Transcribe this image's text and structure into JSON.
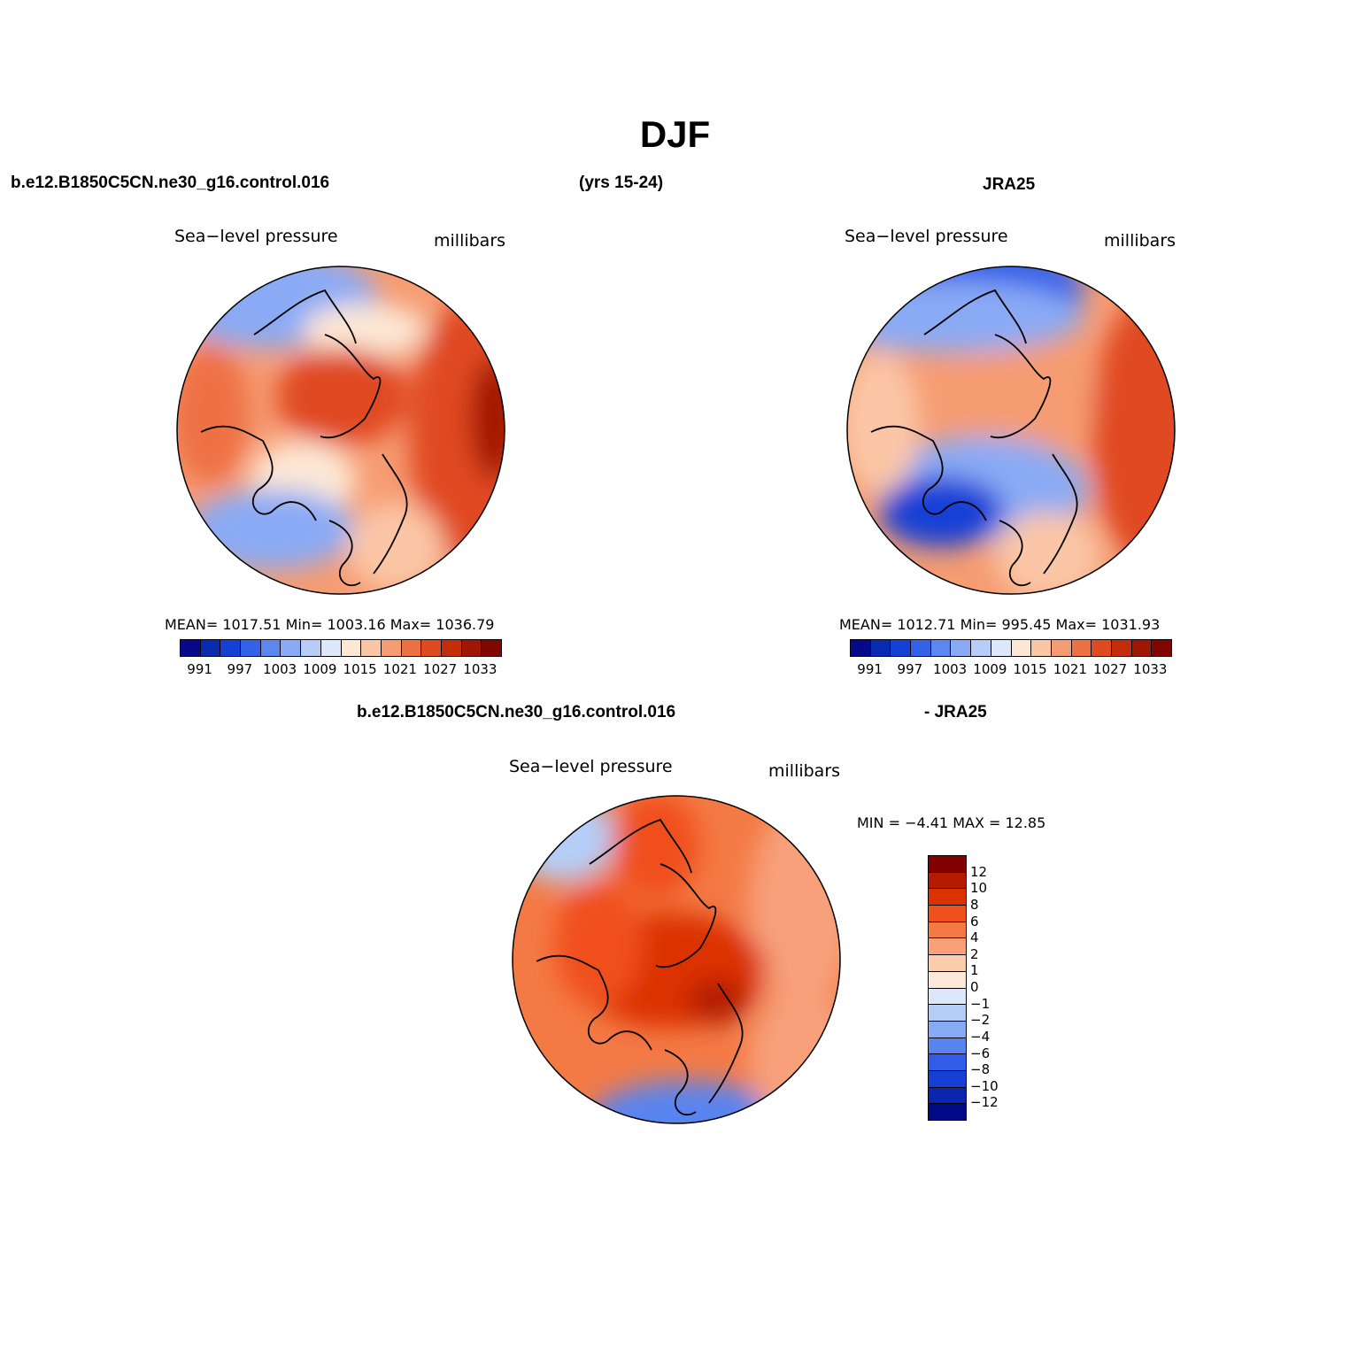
{
  "title": "DJF",
  "top_left_case": "b.e12.B1850C5CN.ne30_g16.control.016",
  "top_years": "(yrs 15-24)",
  "top_right_case": "JRA25",
  "bottom_case": "b.e12.B1850C5CN.ne30_g16.control.016",
  "bottom_ref": "- JRA25",
  "panels": {
    "model": {
      "plot_title": "Sea−level pressure",
      "units": "millibars",
      "stats": "MEAN=  1017.51    Min=  1003.16    Max=  1036.79"
    },
    "obs": {
      "plot_title": "Sea−level pressure",
      "units": "millibars",
      "stats": "MEAN=  1012.71    Min=  995.45    Max=  1031.93"
    },
    "diff": {
      "plot_title": "Sea−level pressure",
      "units": "millibars",
      "stats": "MIN =   −4.41  MAX =   12.85"
    }
  },
  "abs_colorbar": {
    "colors": [
      "#08088a",
      "#0a2ab0",
      "#1440d6",
      "#3361e8",
      "#5c87f0",
      "#8aaaf5",
      "#b7cdf8",
      "#dde9fb",
      "#fde8d6",
      "#fbc6a6",
      "#f69c72",
      "#ee7144",
      "#e04a20",
      "#c42c0c",
      "#a11705",
      "#820600"
    ],
    "tick_labels": [
      "991",
      "997",
      "1003",
      "1009",
      "1015",
      "1021",
      "1027",
      "1033"
    ]
  },
  "diff_colorbar": {
    "colors": [
      "#830000",
      "#b21b00",
      "#db3300",
      "#f0501c",
      "#f47a45",
      "#f7a07a",
      "#fcccae",
      "#fde9da",
      "#dbe8fb",
      "#b5cef8",
      "#87aaf5",
      "#5984f0",
      "#2f5de8",
      "#173fd6",
      "#0a25b0",
      "#020a87"
    ],
    "tick_labels": [
      "12",
      "10",
      "8",
      "6",
      "4",
      "2",
      "1",
      "0",
      "−1",
      "−2",
      "−4",
      "−6",
      "−8",
      "−10",
      "−12"
    ]
  },
  "chart_data": [
    {
      "type": "heatmap",
      "title": "Sea−level pressure",
      "units": "millibars",
      "mean": 1017.51,
      "min": 1003.16,
      "max": 1036.79,
      "levels": [
        991,
        994,
        997,
        1000,
        1003,
        1006,
        1009,
        1012,
        1015,
        1018,
        1021,
        1024,
        1027,
        1030,
        1033
      ]
    },
    {
      "type": "heatmap",
      "title": "Sea−level pressure",
      "units": "millibars",
      "mean": 1012.71,
      "min": 995.45,
      "max": 1031.93,
      "levels": [
        991,
        994,
        997,
        1000,
        1003,
        1006,
        1009,
        1012,
        1015,
        1018,
        1021,
        1024,
        1027,
        1030,
        1033
      ]
    },
    {
      "type": "heatmap",
      "title": "Sea−level pressure",
      "units": "millibars",
      "min": -4.41,
      "max": 12.85,
      "levels": [
        -12,
        -10,
        -8,
        -6,
        -4,
        -2,
        -1,
        0,
        1,
        2,
        4,
        6,
        8,
        10,
        12
      ]
    }
  ]
}
